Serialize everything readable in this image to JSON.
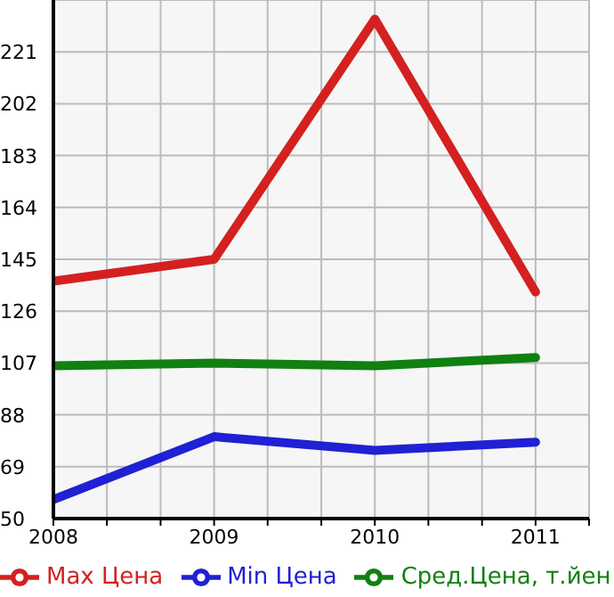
{
  "chart_data": {
    "type": "line",
    "x": [
      2008,
      2009,
      2010,
      2011
    ],
    "xlim": [
      2008,
      2011.333
    ],
    "xticks": [
      2008,
      {
        "value": 2008.333,
        "label": null
      },
      {
        "value": 2008.667,
        "label": null
      },
      2009,
      {
        "value": 2009.333,
        "label": null
      },
      {
        "value": 2009.667,
        "label": null
      },
      2010,
      {
        "value": 2010.333,
        "label": null
      },
      {
        "value": 2010.667,
        "label": null
      },
      2011,
      {
        "value": 2011.333,
        "label": null
      }
    ],
    "ylim": [
      50,
      240
    ],
    "yticks": [
      50,
      69,
      88,
      107,
      126,
      145,
      164,
      183,
      202,
      221
    ],
    "grid": true,
    "legend": "bottom",
    "marker": "none",
    "line_style": "solid",
    "series": [
      {
        "name": "Max Цена",
        "color": "#d42020",
        "values": [
          137,
          145,
          233,
          133
        ]
      },
      {
        "name": "Min Цена",
        "color": "#2020d4",
        "values": [
          57,
          80,
          75,
          78
        ]
      },
      {
        "name": "Сред.Цена, т.йен",
        "color": "#108010",
        "values": [
          106,
          107,
          106,
          109
        ]
      }
    ]
  }
}
